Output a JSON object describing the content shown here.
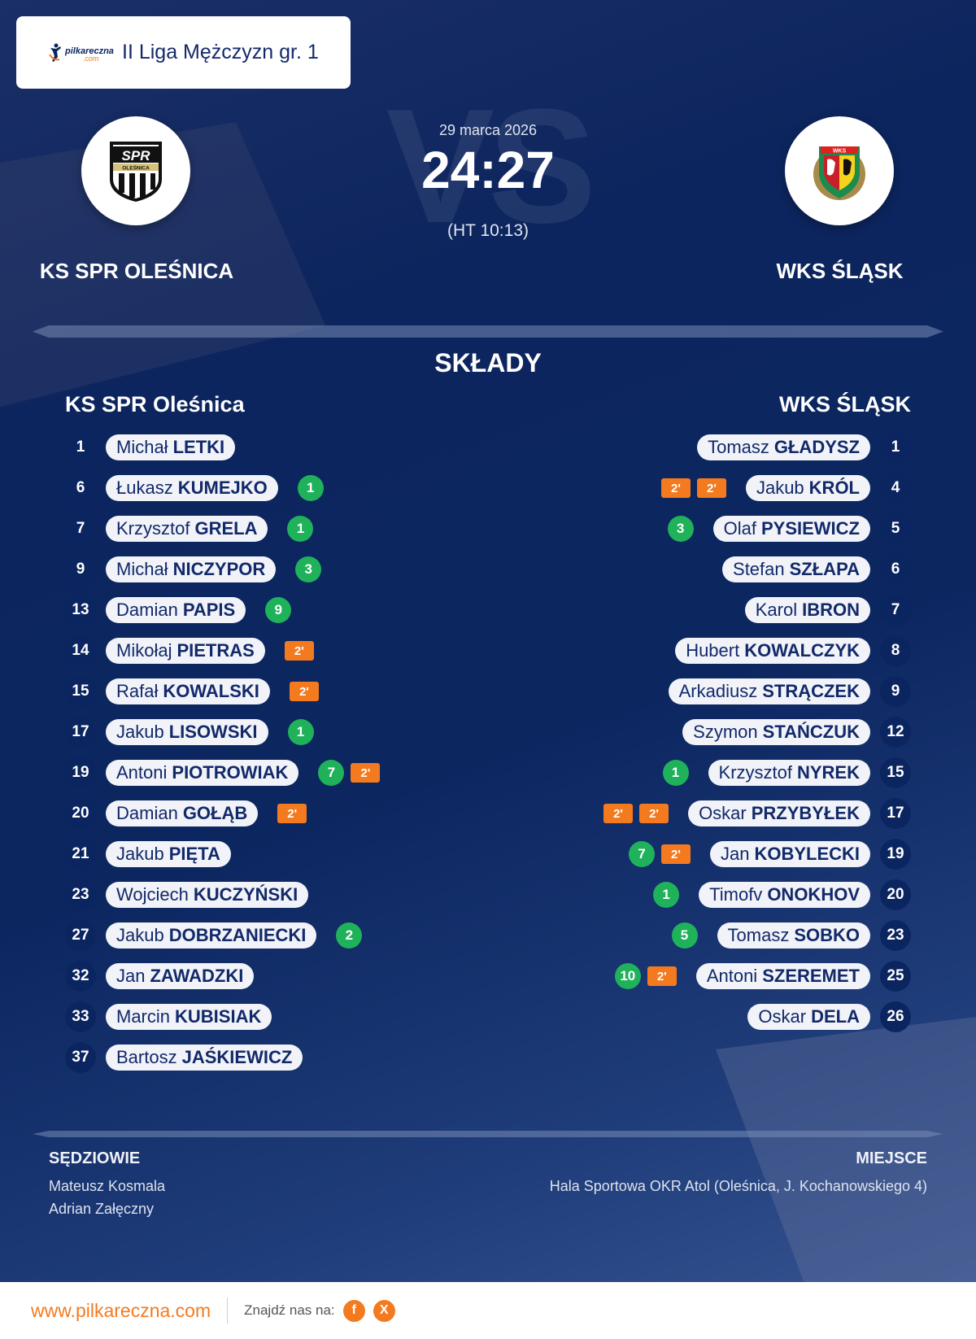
{
  "header": {
    "brand": "pilkareczna",
    "brand_suffix": ".com",
    "league": "II Liga Mężczyzn gr. 1"
  },
  "match": {
    "date": "29 marca 2026",
    "score": "24:27",
    "halftime": "(HT 10:13)",
    "vs_watermark": "VS",
    "home_team": "KS SPR OLEŚNICA",
    "away_team": "WKS ŚLĄSK"
  },
  "colors": {
    "background": "#0c2660",
    "goal_badge": "#1fb25a",
    "penalty_badge": "#f47a1f",
    "accent": "#f47a20"
  },
  "lineups": {
    "title": "SKŁADY",
    "home": {
      "name": "KS SPR Oleśnica",
      "players": [
        {
          "number": "1",
          "first": "Michał",
          "last": "LETKI",
          "goals": null,
          "penalties": 0
        },
        {
          "number": "6",
          "first": "Łukasz",
          "last": "KUMEJKO",
          "goals": "1",
          "penalties": 0
        },
        {
          "number": "7",
          "first": "Krzysztof",
          "last": "GRELA",
          "goals": "1",
          "penalties": 0
        },
        {
          "number": "9",
          "first": "Michał",
          "last": "NICZYPOR",
          "goals": "3",
          "penalties": 0
        },
        {
          "number": "13",
          "first": "Damian",
          "last": "PAPIS",
          "goals": "9",
          "penalties": 0
        },
        {
          "number": "14",
          "first": "Mikołaj",
          "last": "PIETRAS",
          "goals": null,
          "penalties": 1
        },
        {
          "number": "15",
          "first": "Rafał",
          "last": "KOWALSKI",
          "goals": null,
          "penalties": 1
        },
        {
          "number": "17",
          "first": "Jakub",
          "last": "LISOWSKI",
          "goals": "1",
          "penalties": 0
        },
        {
          "number": "19",
          "first": "Antoni",
          "last": "PIOTROWIAK",
          "goals": "7",
          "penalties": 1
        },
        {
          "number": "20",
          "first": "Damian",
          "last": "GOŁĄB",
          "goals": null,
          "penalties": 1
        },
        {
          "number": "21",
          "first": "Jakub",
          "last": "PIĘTA",
          "goals": null,
          "penalties": 0
        },
        {
          "number": "23",
          "first": "Wojciech",
          "last": "KUCZYŃSKI",
          "goals": null,
          "penalties": 0
        },
        {
          "number": "27",
          "first": "Jakub",
          "last": "DOBRZANIECKI",
          "goals": "2",
          "penalties": 0
        },
        {
          "number": "32",
          "first": "Jan",
          "last": "ZAWADZKI",
          "goals": null,
          "penalties": 0
        },
        {
          "number": "33",
          "first": "Marcin",
          "last": "KUBISIAK",
          "goals": null,
          "penalties": 0
        },
        {
          "number": "37",
          "first": "Bartosz",
          "last": "JAŚKIEWICZ",
          "goals": null,
          "penalties": 0
        }
      ]
    },
    "away": {
      "name": "WKS ŚLĄSK",
      "players": [
        {
          "number": "1",
          "first": "Tomasz",
          "last": "GŁADYSZ",
          "goals": null,
          "penalties": 0
        },
        {
          "number": "4",
          "first": "Jakub",
          "last": "KRÓL",
          "goals": null,
          "penalties": 2
        },
        {
          "number": "5",
          "first": "Olaf",
          "last": "PYSIEWICZ",
          "goals": "3",
          "penalties": 0
        },
        {
          "number": "6",
          "first": "Stefan",
          "last": "SZŁAPA",
          "goals": null,
          "penalties": 0
        },
        {
          "number": "7",
          "first": "Karol",
          "last": "IBRON",
          "goals": null,
          "penalties": 0
        },
        {
          "number": "8",
          "first": "Hubert",
          "last": "KOWALCZYK",
          "goals": null,
          "penalties": 0
        },
        {
          "number": "9",
          "first": "Arkadiusz",
          "last": "STRĄCZEK",
          "goals": null,
          "penalties": 0
        },
        {
          "number": "12",
          "first": "Szymon",
          "last": "STAŃCZUK",
          "goals": null,
          "penalties": 0
        },
        {
          "number": "15",
          "first": "Krzysztof",
          "last": "NYREK",
          "goals": "1",
          "penalties": 0
        },
        {
          "number": "17",
          "first": "Oskar",
          "last": "PRZYBYŁEK",
          "goals": null,
          "penalties": 2
        },
        {
          "number": "19",
          "first": "Jan",
          "last": "KOBYLECKI",
          "goals": "7",
          "penalties": 1
        },
        {
          "number": "20",
          "first": "Timofv",
          "last": "ONOKHOV",
          "goals": "1",
          "penalties": 0
        },
        {
          "number": "23",
          "first": "Tomasz",
          "last": "SOBKO",
          "goals": "5",
          "penalties": 0
        },
        {
          "number": "25",
          "first": "Antoni",
          "last": "SZEREMET",
          "goals": "10",
          "penalties": 1
        },
        {
          "number": "26",
          "first": "Oskar",
          "last": "DELA",
          "goals": null,
          "penalties": 0
        }
      ]
    },
    "penalty_label": "2'"
  },
  "referees": {
    "title": "SĘDZIOWIE",
    "names": [
      "Mateusz Kosmala",
      "Adrian Załęczny"
    ]
  },
  "venue": {
    "title": "MIEJSCE",
    "text": "Hala Sportowa OKR Atol (Oleśnica, J. Kochanowskiego 4)"
  },
  "footer": {
    "website": "www.pilkareczna.com",
    "find_us": "Znajdź nas na:",
    "social": [
      {
        "icon": "facebook-icon",
        "glyph": "f"
      },
      {
        "icon": "x-icon",
        "glyph": "X"
      }
    ]
  }
}
